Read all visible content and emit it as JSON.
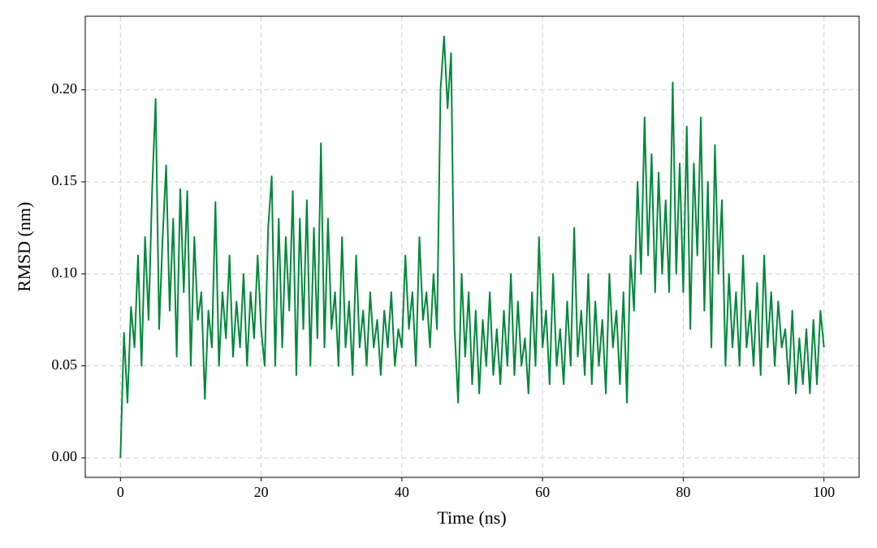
{
  "chart_data": {
    "type": "line",
    "xlabel": "Time (ns)",
    "ylabel": "RMSD (nm)",
    "color": "#00883a",
    "grid": true,
    "xlim": [
      -5,
      105
    ],
    "ylim": [
      -0.0106,
      0.24
    ],
    "xticks": [
      0,
      20,
      40,
      60,
      80,
      100
    ],
    "yticks": [
      {
        "value": 0,
        "label": "0.00"
      },
      0.05,
      {
        "value": 0.1,
        "label": "0.10"
      },
      0.15,
      {
        "value": 0.2,
        "label": "0.20"
      }
    ],
    "x": [
      0,
      0.5,
      1,
      1.5,
      2,
      2.5,
      3,
      3.5,
      4,
      4.5,
      5,
      5.5,
      6,
      6.5,
      7,
      7.5,
      8,
      8.5,
      9,
      9.5,
      10,
      10.5,
      11,
      11.5,
      12,
      12.5,
      13,
      13.5,
      14,
      14.5,
      15,
      15.5,
      16,
      16.5,
      17,
      17.5,
      18,
      18.5,
      19,
      19.5,
      20,
      20.5,
      21,
      21.5,
      22,
      22.5,
      23,
      23.5,
      24,
      24.5,
      25,
      25.5,
      26,
      26.5,
      27,
      27.5,
      28,
      28.5,
      29,
      29.5,
      30,
      30.5,
      31,
      31.5,
      32,
      32.5,
      33,
      33.5,
      34,
      34.5,
      35,
      35.5,
      36,
      36.5,
      37,
      37.5,
      38,
      38.5,
      39,
      39.5,
      40,
      40.5,
      41,
      41.5,
      42,
      42.5,
      43,
      43.5,
      44,
      44.5,
      45,
      45.5,
      46,
      46.5,
      47,
      47.5,
      48,
      48.5,
      49,
      49.5,
      50,
      50.5,
      51,
      51.5,
      52,
      52.5,
      53,
      53.5,
      54,
      54.5,
      55,
      55.5,
      56,
      56.5,
      57,
      57.5,
      58,
      58.5,
      59,
      59.5,
      60,
      60.5,
      61,
      61.5,
      62,
      62.5,
      63,
      63.5,
      64,
      64.5,
      65,
      65.5,
      66,
      66.5,
      67,
      67.5,
      68,
      68.5,
      69,
      69.5,
      70,
      70.5,
      71,
      71.5,
      72,
      72.5,
      73,
      73.5,
      74,
      74.5,
      75,
      75.5,
      76,
      76.5,
      77,
      77.5,
      78,
      78.5,
      79,
      79.5,
      80,
      80.5,
      81,
      81.5,
      82,
      82.5,
      83,
      83.5,
      84,
      84.5,
      85,
      85.5,
      86,
      86.5,
      87,
      87.5,
      88,
      88.5,
      89,
      89.5,
      90,
      90.5,
      91,
      91.5,
      92,
      92.5,
      93,
      93.5,
      94,
      94.5,
      95,
      95.5,
      96,
      96.5,
      97,
      97.5,
      98,
      98.5,
      99,
      99.5,
      100
    ],
    "values": [
      0.0,
      0.068,
      0.03,
      0.082,
      0.06,
      0.11,
      0.05,
      0.12,
      0.075,
      0.145,
      0.195,
      0.07,
      0.12,
      0.159,
      0.08,
      0.13,
      0.055,
      0.146,
      0.09,
      0.145,
      0.05,
      0.12,
      0.075,
      0.09,
      0.032,
      0.08,
      0.06,
      0.139,
      0.05,
      0.09,
      0.065,
      0.11,
      0.055,
      0.085,
      0.06,
      0.1,
      0.05,
      0.09,
      0.065,
      0.11,
      0.07,
      0.05,
      0.125,
      0.153,
      0.05,
      0.13,
      0.06,
      0.12,
      0.08,
      0.145,
      0.045,
      0.13,
      0.07,
      0.14,
      0.05,
      0.125,
      0.065,
      0.171,
      0.06,
      0.13,
      0.07,
      0.09,
      0.05,
      0.12,
      0.06,
      0.085,
      0.045,
      0.11,
      0.06,
      0.08,
      0.05,
      0.09,
      0.06,
      0.075,
      0.045,
      0.08,
      0.06,
      0.09,
      0.05,
      0.07,
      0.06,
      0.11,
      0.07,
      0.09,
      0.05,
      0.12,
      0.075,
      0.09,
      0.06,
      0.1,
      0.07,
      0.2,
      0.229,
      0.19,
      0.22,
      0.07,
      0.03,
      0.1,
      0.055,
      0.09,
      0.04,
      0.08,
      0.035,
      0.075,
      0.05,
      0.09,
      0.045,
      0.07,
      0.04,
      0.08,
      0.05,
      0.1,
      0.045,
      0.085,
      0.05,
      0.065,
      0.035,
      0.09,
      0.05,
      0.12,
      0.06,
      0.08,
      0.04,
      0.1,
      0.05,
      0.07,
      0.04,
      0.085,
      0.05,
      0.125,
      0.055,
      0.08,
      0.045,
      0.1,
      0.04,
      0.085,
      0.05,
      0.075,
      0.035,
      0.1,
      0.06,
      0.08,
      0.04,
      0.09,
      0.03,
      0.11,
      0.08,
      0.15,
      0.1,
      0.185,
      0.11,
      0.165,
      0.09,
      0.155,
      0.1,
      0.14,
      0.09,
      0.204,
      0.1,
      0.16,
      0.09,
      0.18,
      0.07,
      0.16,
      0.11,
      0.185,
      0.08,
      0.15,
      0.06,
      0.17,
      0.1,
      0.14,
      0.05,
      0.1,
      0.06,
      0.09,
      0.05,
      0.11,
      0.06,
      0.08,
      0.05,
      0.095,
      0.045,
      0.11,
      0.06,
      0.09,
      0.05,
      0.085,
      0.06,
      0.07,
      0.04,
      0.08,
      0.035,
      0.065,
      0.04,
      0.07,
      0.035,
      0.075,
      0.04,
      0.08,
      0.06
    ]
  }
}
